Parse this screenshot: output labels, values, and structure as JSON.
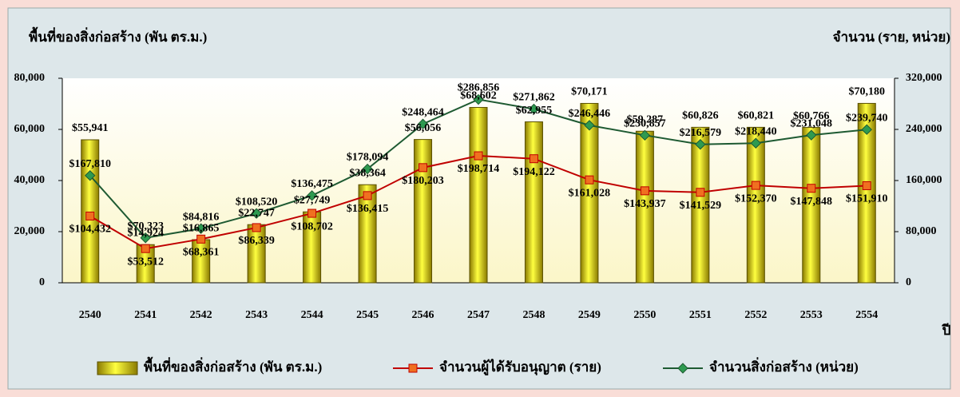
{
  "chart_data": {
    "type": "bar-line",
    "ylabel": "พื้นที่ของสิ่งก่อสร้าง (พัน ตร.ม.)",
    "y2label": "จำนวน (ราย, หน่วย)",
    "xlabel": "ปี",
    "categories": [
      "2540",
      "2541",
      "2542",
      "2543",
      "2544",
      "2545",
      "2546",
      "2547",
      "2548",
      "2549",
      "2550",
      "2551",
      "2552",
      "2553",
      "2554"
    ],
    "ylim": [
      0,
      80000
    ],
    "yticks": [
      0,
      {
        "value": 20000,
        "label": "20,000"
      },
      {
        "value": 40000,
        "label": "40,000"
      },
      {
        "value": 60000,
        "label": "60,000"
      },
      {
        "value": 80000,
        "label": "80,000"
      }
    ],
    "y2lim": [
      0,
      320000
    ],
    "y2ticks": [
      0,
      {
        "value": 80000,
        "label": "80,000"
      },
      {
        "value": 160000,
        "label": "160,000"
      },
      {
        "value": 240000,
        "label": "240,000"
      },
      {
        "value": 320000,
        "label": "320,000"
      }
    ],
    "series": [
      {
        "name": "พื้นที่ของสิ่งก่อสร้าง (พัน ตร.ม.)",
        "type": "bar",
        "color": "#e6d200",
        "values": [
          55941,
          14924,
          16865,
          22747,
          27749,
          38364,
          56056,
          68602,
          62955,
          70171,
          59287,
          60826,
          60821,
          60766,
          70180
        ],
        "value_labels": [
          "$55,941",
          "$14,924",
          "$16,865",
          "$22,747",
          "$27,749",
          "$38,364",
          "$56,056",
          "$68,602",
          "$62,955",
          "$70,171",
          "$59,287",
          "$60,826",
          "$60,821",
          "$60,766",
          "$70,180"
        ]
      },
      {
        "name": "จำนวนผู้ได้รับอนุญาต (ราย)",
        "type": "line",
        "axis": "y2",
        "color": "#c00000",
        "marker_color": "#f07020",
        "values": [
          104432,
          53512,
          68361,
          86339,
          108702,
          136415,
          180203,
          198714,
          194122,
          161028,
          143937,
          141529,
          152370,
          147848,
          151910
        ],
        "value_labels": [
          "$104,432",
          "$53,512",
          "$68,361",
          "$86,339",
          "$108,702",
          "$136,415",
          "$180,203",
          "$198,714",
          "$194,122",
          "$161,028",
          "$143,937",
          "$141,529",
          "$152,370",
          "$147,848",
          "$151,910"
        ]
      },
      {
        "name": "จำนวนสิ่งก่อสร้าง (หน่วย)",
        "type": "line",
        "axis": "y2",
        "color": "#1e5a32",
        "marker_color": "#2e9a50",
        "values": [
          167810,
          70323,
          84816,
          108520,
          136475,
          178094,
          248464,
          286856,
          271862,
          246446,
          230857,
          216579,
          218440,
          231048,
          239740
        ],
        "value_labels": [
          "$167,810",
          "$70,323",
          "$84,816",
          "$108,520",
          "$136,475",
          "$178,094",
          "$248,464",
          "$286,856",
          "$271,862",
          "$246,446",
          "$230,857",
          "$216,579",
          "$218,440",
          "$231,048",
          "$239,740"
        ]
      }
    ]
  }
}
